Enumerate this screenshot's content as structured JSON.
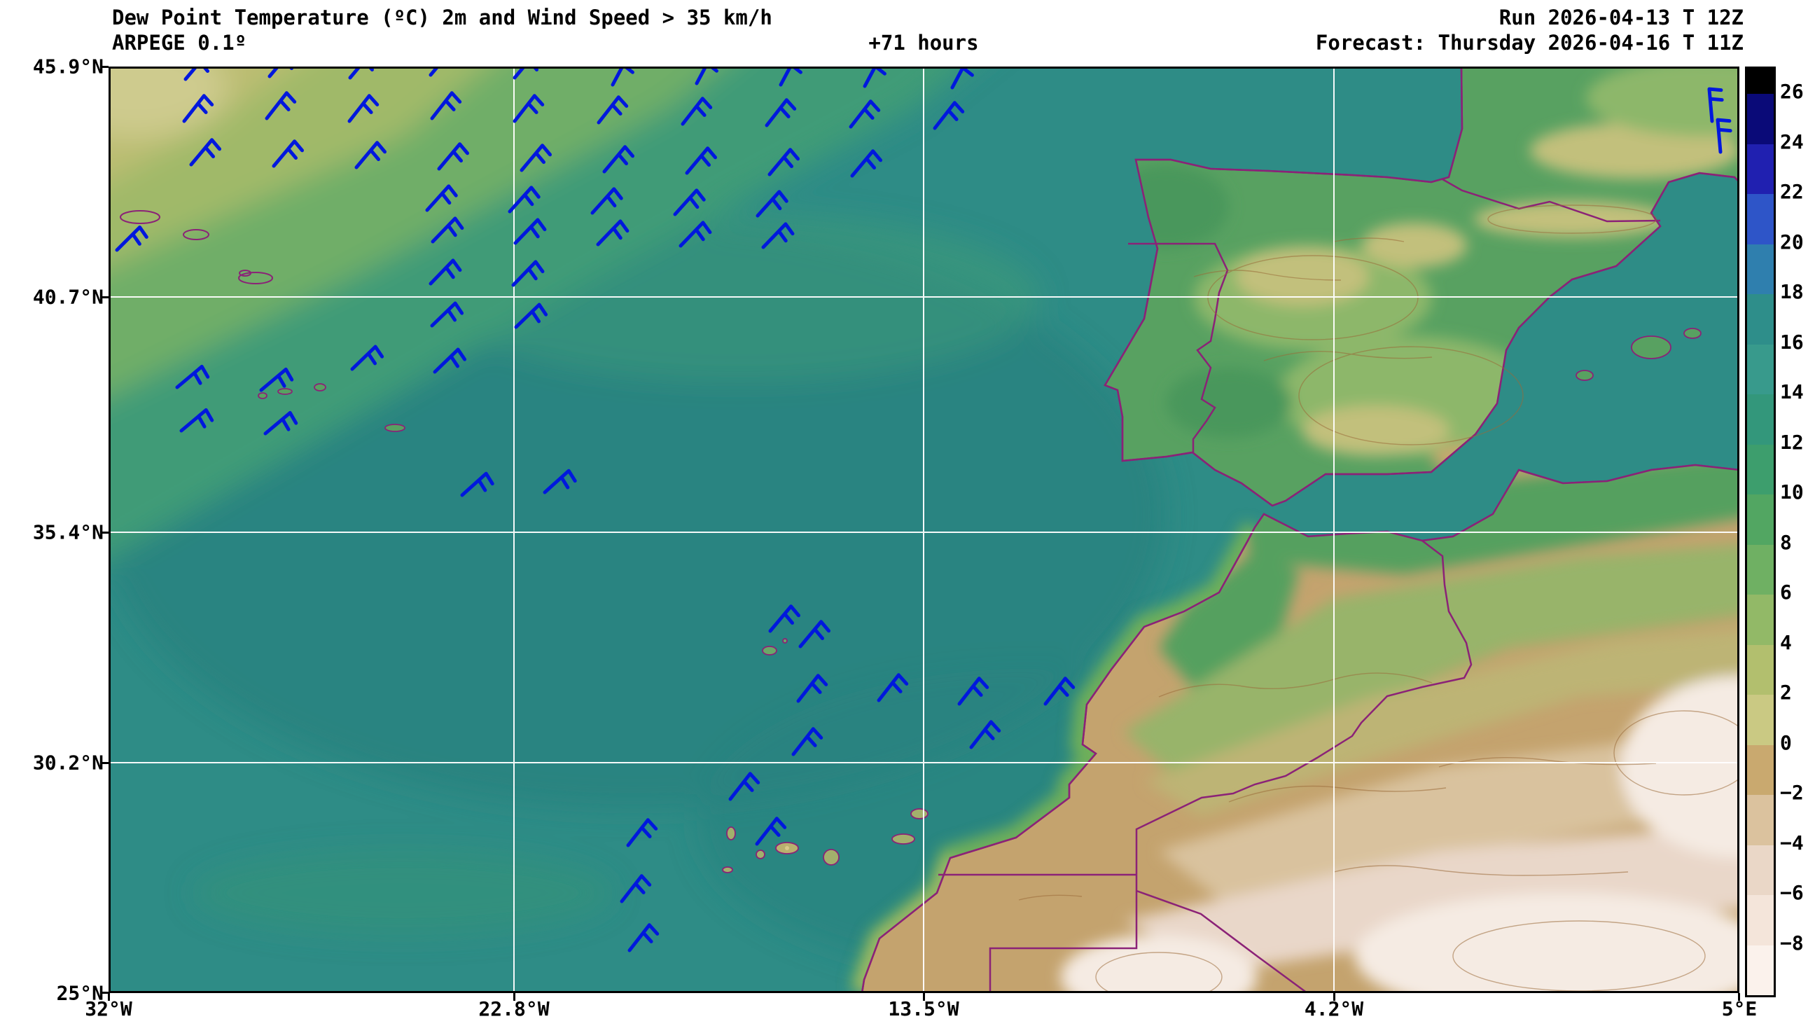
{
  "header": {
    "title": "Dew Point Temperature (ºC) 2m and Wind Speed > 35 km/h",
    "model": "ARPEGE 0.1º",
    "lead": "+71 hours",
    "run": "Run 2026-04-13 T 12Z",
    "forecast": "Forecast: Thursday 2026-04-16 T 11Z"
  },
  "chart_data": {
    "type": "heatmap",
    "title": "Dew Point Temperature (ºC) 2m and Wind Speed > 35 km/h",
    "model": "ARPEGE 0.1º",
    "run": "2026-04-13 T 12Z",
    "forecast_valid": "Thursday 2026-04-16 T 11Z",
    "lead_hours": "+71 hours",
    "x_tick_labels": [
      "32°W",
      "22.8°W",
      "13.5°W",
      "4.2°W",
      "5°E"
    ],
    "y_tick_labels": [
      "45.9°N",
      "40.7°N",
      "35.4°N",
      "30.2°N",
      "25°N"
    ],
    "lon_range_deg": [
      -32,
      5
    ],
    "lat_range_deg": [
      25,
      45.9
    ],
    "grid_on": true,
    "colorbar": {
      "tick_labels": [
        "26",
        "24",
        "22",
        "20",
        "18",
        "16",
        "14",
        "12",
        "10",
        "8",
        "6",
        "4",
        "2",
        "0",
        "−2",
        "−4",
        "−6",
        "−8"
      ],
      "segment_colors": [
        "#000000",
        "#0a0a78",
        "#2020b0",
        "#2e55c8",
        "#2f7fae",
        "#2e8e8a",
        "#389a8c",
        "#33977b",
        "#3d9e6d",
        "#52a662",
        "#6fb063",
        "#92b967",
        "#b2bf6e",
        "#cac983",
        "#c9a96f",
        "#dbc29e",
        "#ead7c7",
        "#f4e5da",
        "#fbf2ec"
      ],
      "position": "right"
    },
    "palette": {
      "ocean_teal": "#2e8c86",
      "land_green": "#58a161",
      "desert_tan": "#c4a36e",
      "desert_pale": "#f5ebe3",
      "coastline": "#8b2277",
      "gridline": "#ffffff",
      "wind_barb": "#0018dd"
    },
    "wind_barbs": {
      "color": "#0018dd",
      "threshold_kmh": 35,
      "points": [
        [
          110,
          18,
          50
        ],
        [
          230,
          14,
          50
        ],
        [
          345,
          16,
          50
        ],
        [
          460,
          12,
          50
        ],
        [
          580,
          16,
          50
        ],
        [
          720,
          26,
          62
        ],
        [
          840,
          24,
          62
        ],
        [
          960,
          26,
          62
        ],
        [
          1080,
          28,
          62
        ],
        [
          1205,
          30,
          62
        ],
        [
          108,
          78,
          52
        ],
        [
          226,
          74,
          52
        ],
        [
          344,
          78,
          52
        ],
        [
          462,
          74,
          52
        ],
        [
          580,
          78,
          52
        ],
        [
          700,
          80,
          52
        ],
        [
          820,
          82,
          52
        ],
        [
          940,
          84,
          52
        ],
        [
          1060,
          86,
          52
        ],
        [
          1180,
          88,
          52
        ],
        [
          118,
          140,
          50
        ],
        [
          236,
          142,
          50
        ],
        [
          354,
          144,
          50
        ],
        [
          472,
          146,
          50
        ],
        [
          590,
          148,
          50
        ],
        [
          708,
          150,
          50
        ],
        [
          826,
          152,
          50
        ],
        [
          944,
          154,
          50
        ],
        [
          1062,
          156,
          50
        ],
        [
          455,
          205,
          48
        ],
        [
          573,
          207,
          48
        ],
        [
          691,
          209,
          48
        ],
        [
          809,
          211,
          48
        ],
        [
          927,
          213,
          48
        ],
        [
          463,
          250,
          46
        ],
        [
          581,
          252,
          46
        ],
        [
          699,
          254,
          46
        ],
        [
          817,
          256,
          46
        ],
        [
          935,
          258,
          46
        ],
        [
          460,
          310,
          46
        ],
        [
          578,
          312,
          46
        ],
        [
          462,
          370,
          44
        ],
        [
          582,
          372,
          44
        ],
        [
          348,
          432,
          44
        ],
        [
          466,
          436,
          44
        ],
        [
          98,
          458,
          40
        ],
        [
          218,
          462,
          40
        ],
        [
          104,
          520,
          40
        ],
        [
          224,
          524,
          40
        ],
        [
          12,
          262,
          45
        ],
        [
          505,
          612,
          42
        ],
        [
          623,
          608,
          42
        ],
        [
          2290,
          78,
          95
        ],
        [
          2302,
          122,
          95
        ],
        [
          945,
          806,
          50
        ],
        [
          988,
          828,
          50
        ],
        [
          985,
          906,
          52
        ],
        [
          1100,
          905,
          52
        ],
        [
          1215,
          910,
          52
        ],
        [
          1338,
          910,
          52
        ],
        [
          978,
          982,
          52
        ],
        [
          1232,
          972,
          52
        ],
        [
          888,
          1046,
          52
        ],
        [
          742,
          1112,
          52
        ],
        [
          926,
          1110,
          52
        ],
        [
          733,
          1192,
          52
        ],
        [
          744,
          1262,
          52
        ]
      ]
    }
  }
}
